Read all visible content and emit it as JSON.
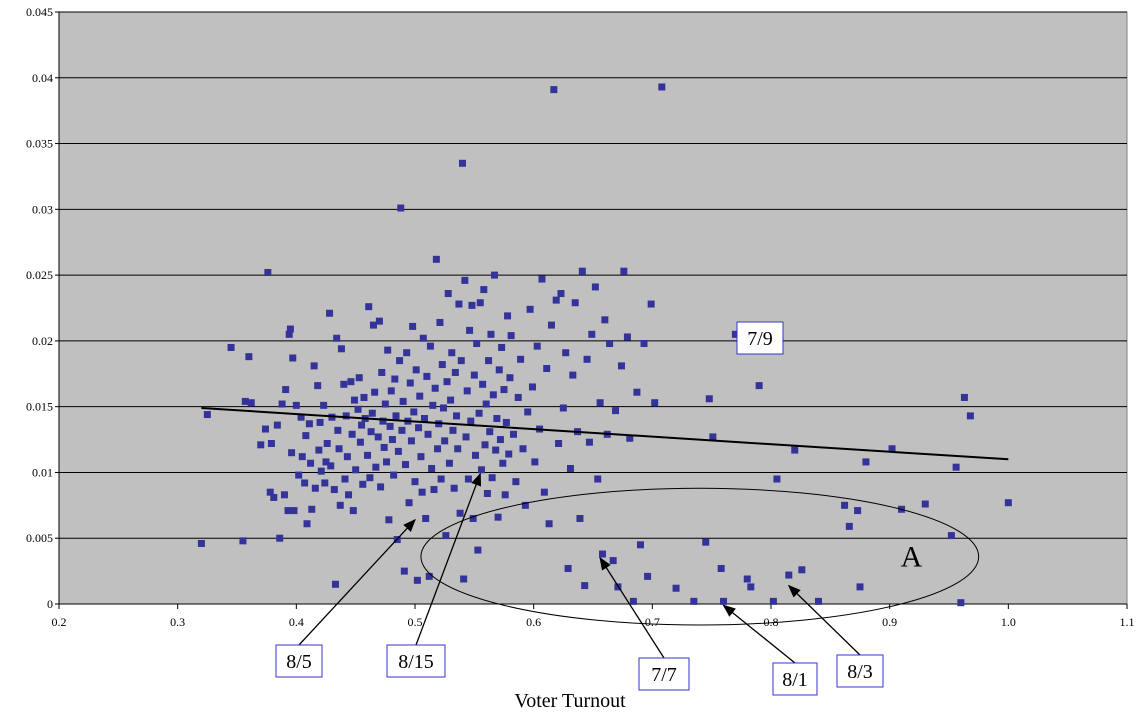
{
  "chart_data": {
    "type": "scatter",
    "title": "",
    "xlabel": "Voter Turnout",
    "ylabel": "",
    "xlim": [
      0.2,
      1.1
    ],
    "ylim": [
      0,
      0.045
    ],
    "x_ticks": [
      "0.2",
      "0.3",
      "0.4",
      "0.5",
      "0.6",
      "0.7",
      "0.8",
      "0.9",
      "1.0",
      "1.1"
    ],
    "y_ticks": [
      "0",
      "0.005",
      "0.01",
      "0.015",
      "0.02",
      "0.025",
      "0.03",
      "0.035",
      "0.04",
      "0.045"
    ],
    "grid": "horizontal",
    "colors": {
      "plot_background": "#c0c0c0",
      "marker": "#333399",
      "trend": "#000000",
      "label_box": "#3333cc"
    },
    "trendline": {
      "x": [
        0.32,
        1.0
      ],
      "y": [
        0.0149,
        0.011
      ]
    },
    "annotations": [
      {
        "text": "7/9",
        "x": 0.77,
        "y": 0.0205
      },
      {
        "text": "8/5",
        "x": 0.5,
        "y": 0.0067
      },
      {
        "text": "8/15",
        "x": 0.555,
        "y": 0.0102
      },
      {
        "text": "7/7",
        "x": 0.656,
        "y": 0.0038
      },
      {
        "text": "8/1",
        "x": 0.76,
        "y": 0.0002
      },
      {
        "text": "8/3",
        "x": 0.815,
        "y": 0.0017
      }
    ],
    "region_label": {
      "text": "A",
      "center": [
        0.74,
        0.0036
      ],
      "radius": [
        0.235,
        0.0052
      ]
    },
    "series": [
      {
        "points": [
          [
            0.32,
            0.0046
          ],
          [
            0.325,
            0.0144
          ],
          [
            0.345,
            0.0195
          ],
          [
            0.355,
            0.0048
          ],
          [
            0.357,
            0.0154
          ],
          [
            0.36,
            0.0188
          ],
          [
            0.362,
            0.0153
          ],
          [
            0.37,
            0.0121
          ],
          [
            0.374,
            0.0133
          ],
          [
            0.376,
            0.0252
          ],
          [
            0.378,
            0.0085
          ],
          [
            0.379,
            0.0122
          ],
          [
            0.381,
            0.0081
          ],
          [
            0.384,
            0.0136
          ],
          [
            0.386,
            0.005
          ],
          [
            0.388,
            0.0152
          ],
          [
            0.39,
            0.0083
          ],
          [
            0.391,
            0.0163
          ],
          [
            0.393,
            0.0071
          ],
          [
            0.394,
            0.0205
          ],
          [
            0.395,
            0.0209
          ],
          [
            0.396,
            0.0115
          ],
          [
            0.397,
            0.0187
          ],
          [
            0.398,
            0.0071
          ],
          [
            0.4,
            0.0151
          ],
          [
            0.402,
            0.0098
          ],
          [
            0.404,
            0.0142
          ],
          [
            0.405,
            0.0112
          ],
          [
            0.407,
            0.0092
          ],
          [
            0.408,
            0.0128
          ],
          [
            0.409,
            0.0061
          ],
          [
            0.411,
            0.0137
          ],
          [
            0.412,
            0.0107
          ],
          [
            0.413,
            0.0072
          ],
          [
            0.415,
            0.0181
          ],
          [
            0.416,
            0.0088
          ],
          [
            0.418,
            0.0166
          ],
          [
            0.419,
            0.0117
          ],
          [
            0.42,
            0.0138
          ],
          [
            0.421,
            0.0101
          ],
          [
            0.423,
            0.0151
          ],
          [
            0.424,
            0.0092
          ],
          [
            0.425,
            0.0108
          ],
          [
            0.426,
            0.0122
          ],
          [
            0.428,
            0.0221
          ],
          [
            0.429,
            0.0105
          ],
          [
            0.43,
            0.0142
          ],
          [
            0.432,
            0.0087
          ],
          [
            0.433,
            0.0015
          ],
          [
            0.434,
            0.0202
          ],
          [
            0.435,
            0.0132
          ],
          [
            0.436,
            0.0118
          ],
          [
            0.437,
            0.0075
          ],
          [
            0.438,
            0.0194
          ],
          [
            0.44,
            0.0167
          ],
          [
            0.441,
            0.0095
          ],
          [
            0.442,
            0.0143
          ],
          [
            0.443,
            0.0112
          ],
          [
            0.444,
            0.0083
          ],
          [
            0.446,
            0.0169
          ],
          [
            0.447,
            0.0129
          ],
          [
            0.448,
            0.0071
          ],
          [
            0.449,
            0.0155
          ],
          [
            0.45,
            0.0102
          ],
          [
            0.452,
            0.0148
          ],
          [
            0.453,
            0.0172
          ],
          [
            0.454,
            0.0123
          ],
          [
            0.455,
            0.0136
          ],
          [
            0.456,
            0.0091
          ],
          [
            0.457,
            0.0157
          ],
          [
            0.458,
            0.0141
          ],
          [
            0.46,
            0.0113
          ],
          [
            0.461,
            0.0226
          ],
          [
            0.462,
            0.0096
          ],
          [
            0.463,
            0.0131
          ],
          [
            0.464,
            0.0145
          ],
          [
            0.465,
            0.0212
          ],
          [
            0.466,
            0.0161
          ],
          [
            0.467,
            0.0104
          ],
          [
            0.469,
            0.0127
          ],
          [
            0.47,
            0.0215
          ],
          [
            0.471,
            0.0089
          ],
          [
            0.472,
            0.0176
          ],
          [
            0.473,
            0.0139
          ],
          [
            0.474,
            0.0119
          ],
          [
            0.475,
            0.0152
          ],
          [
            0.476,
            0.0108
          ],
          [
            0.477,
            0.0193
          ],
          [
            0.478,
            0.0064
          ],
          [
            0.479,
            0.0135
          ],
          [
            0.48,
            0.0162
          ],
          [
            0.481,
            0.0125
          ],
          [
            0.482,
            0.0098
          ],
          [
            0.483,
            0.0171
          ],
          [
            0.484,
            0.0143
          ],
          [
            0.485,
            0.0049
          ],
          [
            0.486,
            0.0116
          ],
          [
            0.487,
            0.0185
          ],
          [
            0.488,
            0.0301
          ],
          [
            0.489,
            0.0132
          ],
          [
            0.49,
            0.0154
          ],
          [
            0.491,
            0.0025
          ],
          [
            0.492,
            0.0106
          ],
          [
            0.493,
            0.0191
          ],
          [
            0.494,
            0.0139
          ],
          [
            0.495,
            0.0077
          ],
          [
            0.496,
            0.0168
          ],
          [
            0.497,
            0.0124
          ],
          [
            0.498,
            0.0211
          ],
          [
            0.499,
            0.0146
          ],
          [
            0.5,
            0.0093
          ],
          [
            0.501,
            0.0178
          ],
          [
            0.502,
            0.0018
          ],
          [
            0.503,
            0.0134
          ],
          [
            0.504,
            0.0158
          ],
          [
            0.505,
            0.0112
          ],
          [
            0.506,
            0.0085
          ],
          [
            0.507,
            0.0202
          ],
          [
            0.508,
            0.0141
          ],
          [
            0.509,
            0.0065
          ],
          [
            0.51,
            0.0173
          ],
          [
            0.511,
            0.0129
          ],
          [
            0.512,
            0.0021
          ],
          [
            0.513,
            0.0196
          ],
          [
            0.514,
            0.0103
          ],
          [
            0.515,
            0.0151
          ],
          [
            0.516,
            0.0087
          ],
          [
            0.517,
            0.0164
          ],
          [
            0.518,
            0.0262
          ],
          [
            0.519,
            0.0118
          ],
          [
            0.52,
            0.0137
          ],
          [
            0.521,
            0.0214
          ],
          [
            0.522,
            0.0095
          ],
          [
            0.523,
            0.0182
          ],
          [
            0.524,
            0.0149
          ],
          [
            0.525,
            0.0124
          ],
          [
            0.526,
            0.0052
          ],
          [
            0.527,
            0.0169
          ],
          [
            0.528,
            0.0236
          ],
          [
            0.529,
            0.0107
          ],
          [
            0.53,
            0.0155
          ],
          [
            0.531,
            0.0191
          ],
          [
            0.532,
            0.0132
          ],
          [
            0.533,
            0.0088
          ],
          [
            0.534,
            0.0176
          ],
          [
            0.535,
            0.0143
          ],
          [
            0.536,
            0.0118
          ],
          [
            0.537,
            0.0228
          ],
          [
            0.538,
            0.0069
          ],
          [
            0.539,
            0.0185
          ],
          [
            0.54,
            0.0335
          ],
          [
            0.541,
            0.0019
          ],
          [
            0.542,
            0.0246
          ],
          [
            0.543,
            0.0127
          ],
          [
            0.544,
            0.0162
          ],
          [
            0.545,
            0.0095
          ],
          [
            0.546,
            0.0208
          ],
          [
            0.547,
            0.0139
          ],
          [
            0.548,
            0.0227
          ],
          [
            0.549,
            0.0065
          ],
          [
            0.55,
            0.0174
          ],
          [
            0.551,
            0.0113
          ],
          [
            0.552,
            0.0198
          ],
          [
            0.553,
            0.0041
          ],
          [
            0.554,
            0.0145
          ],
          [
            0.555,
            0.0229
          ],
          [
            0.556,
            0.0102
          ],
          [
            0.557,
            0.0167
          ],
          [
            0.558,
            0.0239
          ],
          [
            0.559,
            0.0121
          ],
          [
            0.56,
            0.0152
          ],
          [
            0.561,
            0.0084
          ],
          [
            0.562,
            0.0185
          ],
          [
            0.563,
            0.0131
          ],
          [
            0.564,
            0.0205
          ],
          [
            0.565,
            0.0096
          ],
          [
            0.566,
            0.0159
          ],
          [
            0.567,
            0.025
          ],
          [
            0.568,
            0.0117
          ],
          [
            0.569,
            0.0141
          ],
          [
            0.57,
            0.0066
          ],
          [
            0.571,
            0.0178
          ],
          [
            0.572,
            0.0125
          ],
          [
            0.573,
            0.0195
          ],
          [
            0.574,
            0.0107
          ],
          [
            0.575,
            0.0163
          ],
          [
            0.576,
            0.0083
          ],
          [
            0.577,
            0.0138
          ],
          [
            0.578,
            0.0219
          ],
          [
            0.579,
            0.0114
          ],
          [
            0.58,
            0.0172
          ],
          [
            0.581,
            0.0204
          ],
          [
            0.583,
            0.0129
          ],
          [
            0.585,
            0.0093
          ],
          [
            0.587,
            0.0157
          ],
          [
            0.589,
            0.0186
          ],
          [
            0.591,
            0.0118
          ],
          [
            0.593,
            0.0075
          ],
          [
            0.595,
            0.0146
          ],
          [
            0.597,
            0.0224
          ],
          [
            0.599,
            0.0165
          ],
          [
            0.601,
            0.0108
          ],
          [
            0.603,
            0.0196
          ],
          [
            0.605,
            0.0133
          ],
          [
            0.607,
            0.0247
          ],
          [
            0.609,
            0.0085
          ],
          [
            0.611,
            0.0179
          ],
          [
            0.613,
            0.0061
          ],
          [
            0.615,
            0.0212
          ],
          [
            0.617,
            0.0391
          ],
          [
            0.619,
            0.0231
          ],
          [
            0.621,
            0.0122
          ],
          [
            0.623,
            0.0236
          ],
          [
            0.625,
            0.0149
          ],
          [
            0.627,
            0.0191
          ],
          [
            0.629,
            0.0027
          ],
          [
            0.631,
            0.0103
          ],
          [
            0.633,
            0.0174
          ],
          [
            0.635,
            0.0229
          ],
          [
            0.637,
            0.0131
          ],
          [
            0.639,
            0.0065
          ],
          [
            0.641,
            0.0253
          ],
          [
            0.643,
            0.0014
          ],
          [
            0.645,
            0.0186
          ],
          [
            0.647,
            0.0123
          ],
          [
            0.649,
            0.0205
          ],
          [
            0.652,
            0.0241
          ],
          [
            0.654,
            0.0095
          ],
          [
            0.656,
            0.0153
          ],
          [
            0.658,
            0.0038
          ],
          [
            0.66,
            0.0216
          ],
          [
            0.662,
            0.0129
          ],
          [
            0.664,
            0.0198
          ],
          [
            0.667,
            0.0033
          ],
          [
            0.669,
            0.0147
          ],
          [
            0.671,
            0.0013
          ],
          [
            0.674,
            0.0181
          ],
          [
            0.676,
            0.0253
          ],
          [
            0.679,
            0.0203
          ],
          [
            0.681,
            0.0126
          ],
          [
            0.684,
            0.0002
          ],
          [
            0.687,
            0.0161
          ],
          [
            0.69,
            0.0045
          ],
          [
            0.693,
            0.0198
          ],
          [
            0.696,
            0.0021
          ],
          [
            0.699,
            0.0228
          ],
          [
            0.702,
            0.0153
          ],
          [
            0.708,
            0.0393
          ],
          [
            0.72,
            0.0012
          ],
          [
            0.735,
            0.0002
          ],
          [
            0.745,
            0.0047
          ],
          [
            0.748,
            0.0156
          ],
          [
            0.751,
            0.0127
          ],
          [
            0.758,
            0.0027
          ],
          [
            0.76,
            0.0002
          ],
          [
            0.77,
            0.0205
          ],
          [
            0.78,
            0.0019
          ],
          [
            0.783,
            0.0013
          ],
          [
            0.79,
            0.0166
          ],
          [
            0.802,
            0.0002
          ],
          [
            0.805,
            0.0095
          ],
          [
            0.815,
            0.0022
          ],
          [
            0.82,
            0.0117
          ],
          [
            0.826,
            0.0026
          ],
          [
            0.84,
            0.0002
          ],
          [
            0.862,
            0.0075
          ],
          [
            0.866,
            0.0059
          ],
          [
            0.873,
            0.0071
          ],
          [
            0.875,
            0.0013
          ],
          [
            0.88,
            0.0108
          ],
          [
            0.902,
            0.0118
          ],
          [
            0.91,
            0.0072
          ],
          [
            0.93,
            0.0076
          ],
          [
            0.952,
            0.0052
          ],
          [
            0.956,
            0.0104
          ],
          [
            0.96,
            0.0001
          ],
          [
            0.963,
            0.0157
          ],
          [
            0.968,
            0.0143
          ],
          [
            1.0,
            0.0077
          ]
        ]
      }
    ]
  }
}
